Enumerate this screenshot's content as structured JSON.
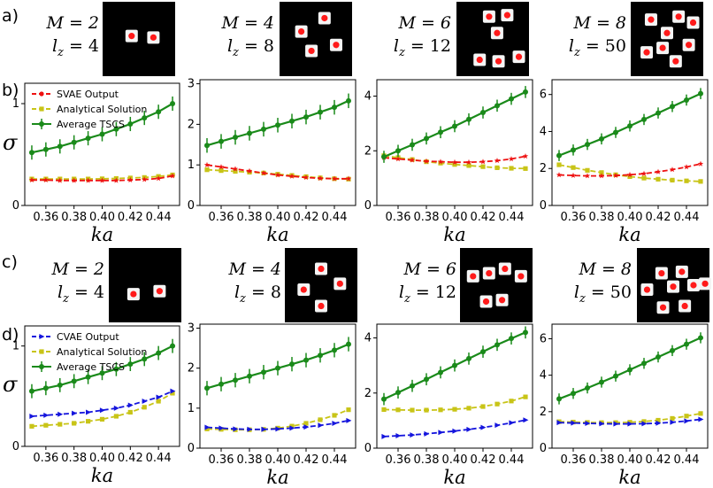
{
  "panel_letters": [
    "a)",
    "b)",
    "c)",
    "d)"
  ],
  "x_axis_symbol": "ka",
  "y_axis_symbol": "σ",
  "image_row_a": [
    {
      "m_label": "M = 2",
      "lz_label": "l",
      "lz_sub": "z",
      "lz_value": "= 4",
      "n_particles": 2
    },
    {
      "m_label": "M = 4",
      "lz_label": "l",
      "lz_sub": "z",
      "lz_value": "= 8",
      "n_particles": 4
    },
    {
      "m_label": "M = 6",
      "lz_label": "l",
      "lz_sub": "z",
      "lz_value": "= 12",
      "n_particles": 6
    },
    {
      "m_label": "M = 8",
      "lz_label": "l",
      "lz_sub": "z",
      "lz_value": "= 50",
      "n_particles": 8
    }
  ],
  "image_row_c": [
    {
      "m_label": "M = 2",
      "lz_label": "l",
      "lz_sub": "z",
      "lz_value": "= 4",
      "n_particles": 2
    },
    {
      "m_label": "M = 4",
      "lz_label": "l",
      "lz_sub": "z",
      "lz_value": "= 8",
      "n_particles": 4
    },
    {
      "m_label": "M = 6",
      "lz_label": "l",
      "lz_sub": "z",
      "lz_value": "= 12",
      "n_particles": 6
    },
    {
      "m_label": "M = 8",
      "lz_label": "l",
      "lz_sub": "z",
      "lz_value": "= 50",
      "n_particles": 8
    }
  ],
  "colors": {
    "tscs": "#1a8a1a",
    "analytical": "#c8c417",
    "svae": "#ee1111",
    "cvae": "#1515dd"
  },
  "chart_data": [
    {
      "type": "line",
      "row": "b",
      "ylim": [
        0,
        1.2
      ],
      "yticks": [
        0,
        1
      ],
      "xticks": [
        "0.36",
        "0.38",
        "0.40",
        "0.42",
        "0.44"
      ],
      "xlim": [
        0.345,
        0.455
      ],
      "legend": [
        "SVAE Output",
        "Analytical Solution",
        "Average TSCS"
      ],
      "x": [
        0.35,
        0.36,
        0.37,
        0.38,
        0.39,
        0.4,
        0.41,
        0.42,
        0.43,
        0.44,
        0.45
      ],
      "series": [
        {
          "name": "SVAE Output",
          "key": "svae",
          "values": [
            0.25,
            0.25,
            0.245,
            0.245,
            0.245,
            0.245,
            0.245,
            0.25,
            0.255,
            0.265,
            0.29
          ]
        },
        {
          "name": "Analytical Solution",
          "key": "analytical",
          "values": [
            0.26,
            0.26,
            0.26,
            0.26,
            0.26,
            0.262,
            0.265,
            0.27,
            0.275,
            0.285,
            0.3
          ]
        },
        {
          "name": "Average TSCS",
          "key": "tscs",
          "values": [
            0.52,
            0.55,
            0.58,
            0.62,
            0.66,
            0.7,
            0.75,
            0.8,
            0.86,
            0.92,
            1.0
          ],
          "err": 0.07
        }
      ]
    },
    {
      "type": "line",
      "row": "b",
      "ylim": [
        0,
        3.1
      ],
      "yticks": [
        0,
        1,
        2,
        3
      ],
      "xticks": [
        "0.36",
        "0.38",
        "0.40",
        "0.42",
        "0.44"
      ],
      "xlim": [
        0.345,
        0.455
      ],
      "x": [
        0.35,
        0.36,
        0.37,
        0.38,
        0.39,
        0.4,
        0.41,
        0.42,
        0.43,
        0.44,
        0.45
      ],
      "series": [
        {
          "name": "SVAE Output",
          "key": "svae",
          "values": [
            1.0,
            0.95,
            0.9,
            0.85,
            0.8,
            0.75,
            0.72,
            0.69,
            0.67,
            0.66,
            0.66
          ]
        },
        {
          "name": "Analytical Solution",
          "key": "analytical",
          "values": [
            0.88,
            0.86,
            0.84,
            0.82,
            0.8,
            0.77,
            0.74,
            0.71,
            0.68,
            0.66,
            0.65
          ]
        },
        {
          "name": "Average TSCS",
          "key": "tscs",
          "values": [
            1.48,
            1.58,
            1.68,
            1.78,
            1.88,
            1.98,
            2.08,
            2.18,
            2.3,
            2.42,
            2.58
          ],
          "err": 0.18
        }
      ]
    },
    {
      "type": "line",
      "row": "b",
      "ylim": [
        0,
        4.6
      ],
      "yticks": [
        0,
        2,
        4
      ],
      "xticks": [
        "0.36",
        "0.38",
        "0.40",
        "0.42",
        "0.44"
      ],
      "xlim": [
        0.345,
        0.455
      ],
      "x": [
        0.35,
        0.36,
        0.37,
        0.38,
        0.39,
        0.4,
        0.41,
        0.42,
        0.43,
        0.44,
        0.45
      ],
      "series": [
        {
          "name": "SVAE Output",
          "key": "svae",
          "values": [
            1.75,
            1.7,
            1.66,
            1.62,
            1.6,
            1.58,
            1.58,
            1.6,
            1.64,
            1.7,
            1.8
          ]
        },
        {
          "name": "Analytical Solution",
          "key": "analytical",
          "values": [
            1.82,
            1.75,
            1.68,
            1.6,
            1.55,
            1.5,
            1.46,
            1.42,
            1.38,
            1.36,
            1.35
          ]
        },
        {
          "name": "Average TSCS",
          "key": "tscs",
          "values": [
            1.78,
            2.0,
            2.22,
            2.45,
            2.68,
            2.9,
            3.15,
            3.4,
            3.65,
            3.9,
            4.15
          ],
          "err": 0.22
        }
      ]
    },
    {
      "type": "line",
      "row": "b",
      "ylim": [
        0,
        6.8
      ],
      "yticks": [
        0,
        2,
        4,
        6
      ],
      "xticks": [
        "0.36",
        "0.38",
        "0.40",
        "0.42",
        "0.44"
      ],
      "xlim": [
        0.345,
        0.455
      ],
      "x": [
        0.35,
        0.36,
        0.37,
        0.38,
        0.39,
        0.4,
        0.41,
        0.42,
        0.43,
        0.44,
        0.45
      ],
      "series": [
        {
          "name": "SVAE Output",
          "key": "svae",
          "values": [
            1.65,
            1.62,
            1.6,
            1.6,
            1.62,
            1.66,
            1.72,
            1.82,
            1.94,
            2.08,
            2.25
          ]
        },
        {
          "name": "Analytical Solution",
          "key": "analytical",
          "values": [
            2.2,
            2.05,
            1.9,
            1.78,
            1.66,
            1.56,
            1.48,
            1.42,
            1.37,
            1.33,
            1.3
          ]
        },
        {
          "name": "Average TSCS",
          "key": "tscs",
          "values": [
            2.7,
            3.0,
            3.3,
            3.6,
            3.95,
            4.3,
            4.65,
            5.0,
            5.35,
            5.7,
            6.05
          ],
          "err": 0.3
        }
      ]
    },
    {
      "type": "line",
      "row": "d",
      "ylim": [
        0,
        1.2
      ],
      "yticks": [
        0,
        1
      ],
      "xticks": [
        "0.36",
        "0.38",
        "0.40",
        "0.42",
        "0.44"
      ],
      "xlim": [
        0.345,
        0.455
      ],
      "legend": [
        "CVAE Output",
        "Analytical Solution",
        "Average TSCS"
      ],
      "x": [
        0.35,
        0.36,
        0.37,
        0.38,
        0.39,
        0.4,
        0.41,
        0.42,
        0.43,
        0.44,
        0.45
      ],
      "series": [
        {
          "name": "CVAE Output",
          "key": "cvae",
          "values": [
            0.3,
            0.31,
            0.32,
            0.33,
            0.34,
            0.36,
            0.38,
            0.41,
            0.45,
            0.49,
            0.55
          ]
        },
        {
          "name": "Analytical Solution",
          "key": "analytical",
          "values": [
            0.2,
            0.21,
            0.22,
            0.23,
            0.25,
            0.27,
            0.3,
            0.34,
            0.39,
            0.45,
            0.53
          ]
        },
        {
          "name": "Average TSCS",
          "key": "tscs",
          "values": [
            0.55,
            0.58,
            0.61,
            0.65,
            0.69,
            0.73,
            0.77,
            0.82,
            0.87,
            0.93,
            1.0
          ],
          "err": 0.07
        }
      ]
    },
    {
      "type": "line",
      "row": "d",
      "ylim": [
        0,
        3.1
      ],
      "yticks": [
        0,
        1,
        2,
        3
      ],
      "xticks": [
        "0.36",
        "0.38",
        "0.40",
        "0.42",
        "0.44"
      ],
      "xlim": [
        0.345,
        0.455
      ],
      "x": [
        0.35,
        0.36,
        0.37,
        0.38,
        0.39,
        0.4,
        0.41,
        0.42,
        0.43,
        0.44,
        0.45
      ],
      "series": [
        {
          "name": "CVAE Output",
          "key": "cvae",
          "values": [
            0.52,
            0.5,
            0.48,
            0.47,
            0.47,
            0.48,
            0.5,
            0.53,
            0.57,
            0.62,
            0.69
          ]
        },
        {
          "name": "Analytical Solution",
          "key": "analytical",
          "values": [
            0.48,
            0.47,
            0.46,
            0.46,
            0.47,
            0.5,
            0.55,
            0.62,
            0.71,
            0.82,
            0.96
          ]
        },
        {
          "name": "Average TSCS",
          "key": "tscs",
          "values": [
            1.5,
            1.6,
            1.7,
            1.8,
            1.9,
            2.0,
            2.1,
            2.2,
            2.32,
            2.45,
            2.6
          ],
          "err": 0.18
        }
      ]
    },
    {
      "type": "line",
      "row": "d",
      "ylim": [
        0,
        4.5
      ],
      "yticks": [
        0,
        2,
        4
      ],
      "xticks": [
        "0.36",
        "0.38",
        "0.40",
        "0.42",
        "0.44"
      ],
      "xlim": [
        0.345,
        0.455
      ],
      "x": [
        0.35,
        0.36,
        0.37,
        0.38,
        0.39,
        0.4,
        0.41,
        0.42,
        0.43,
        0.44,
        0.45
      ],
      "series": [
        {
          "name": "CVAE Output",
          "key": "cvae",
          "values": [
            0.42,
            0.45,
            0.48,
            0.52,
            0.57,
            0.62,
            0.68,
            0.75,
            0.83,
            0.92,
            1.02
          ]
        },
        {
          "name": "Analytical Solution",
          "key": "analytical",
          "values": [
            1.4,
            1.39,
            1.38,
            1.38,
            1.39,
            1.41,
            1.45,
            1.51,
            1.6,
            1.71,
            1.86
          ]
        },
        {
          "name": "Average TSCS",
          "key": "tscs",
          "values": [
            1.78,
            2.02,
            2.26,
            2.5,
            2.75,
            3.0,
            3.25,
            3.5,
            3.75,
            3.98,
            4.2
          ],
          "err": 0.22
        }
      ]
    },
    {
      "type": "line",
      "row": "d",
      "ylim": [
        0,
        6.8
      ],
      "yticks": [
        0,
        2,
        4,
        6
      ],
      "xticks": [
        "0.36",
        "0.38",
        "0.40",
        "0.42",
        "0.44"
      ],
      "xlim": [
        0.345,
        0.455
      ],
      "x": [
        0.35,
        0.36,
        0.37,
        0.38,
        0.39,
        0.4,
        0.41,
        0.42,
        0.43,
        0.44,
        0.45
      ],
      "series": [
        {
          "name": "CVAE Output",
          "key": "cvae",
          "values": [
            1.4,
            1.38,
            1.36,
            1.34,
            1.33,
            1.33,
            1.34,
            1.37,
            1.42,
            1.49,
            1.58
          ]
        },
        {
          "name": "Analytical Solution",
          "key": "analytical",
          "values": [
            1.45,
            1.43,
            1.41,
            1.4,
            1.4,
            1.42,
            1.46,
            1.53,
            1.63,
            1.76,
            1.9
          ]
        },
        {
          "name": "Average TSCS",
          "key": "tscs",
          "values": [
            2.7,
            3.0,
            3.3,
            3.62,
            3.95,
            4.3,
            4.65,
            5.0,
            5.35,
            5.7,
            6.05
          ],
          "err": 0.3
        }
      ]
    }
  ]
}
